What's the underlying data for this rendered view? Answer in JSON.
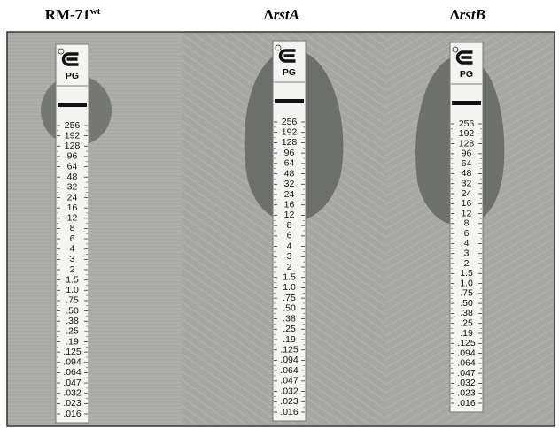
{
  "panels": [
    {
      "label": "RM-71",
      "sup": "wt"
    },
    {
      "prefix": "Δ",
      "label": "rstA"
    },
    {
      "prefix": "Δ",
      "label": "rstB"
    }
  ],
  "strip": {
    "code": "PG",
    "scale": [
      "256",
      "192",
      "128",
      "96",
      "64",
      "48",
      "32",
      "24",
      "16",
      "12",
      "8",
      "6",
      "4",
      "3",
      "2",
      "1.5",
      "1.0",
      ".75",
      ".50",
      ".38",
      ".25",
      ".19",
      ".125",
      ".094",
      ".064",
      ".047",
      ".032",
      ".023",
      ".016"
    ]
  }
}
